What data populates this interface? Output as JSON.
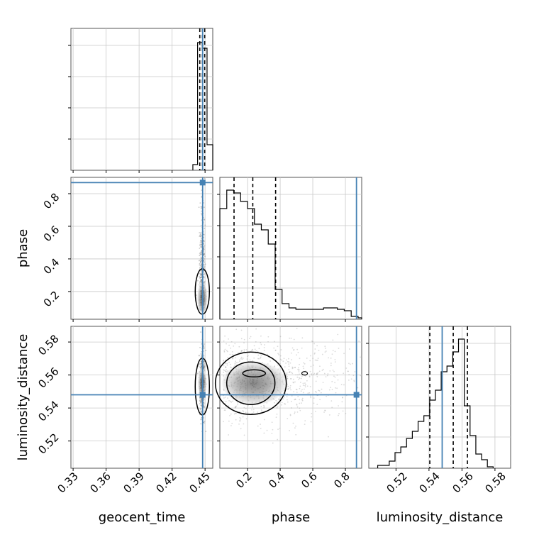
{
  "chart_data": {
    "type": "corner",
    "parameters": [
      "geocent_time",
      "phase",
      "luminosity_distance"
    ],
    "axis_labels": {
      "geocent_time": "geocent_time",
      "phase": "phase",
      "luminosity_distance": "luminosity_distance"
    },
    "axis_ranges": {
      "geocent_time": [
        0.328,
        0.457
      ],
      "phase": [
        0.03,
        0.9
      ],
      "luminosity_distance": [
        0.5035,
        0.5895
      ]
    },
    "ticks": {
      "geocent_time": [
        0.33,
        0.36,
        0.39,
        0.42,
        0.45
      ],
      "geocent_time_labels": [
        "0.33",
        "0.36",
        "0.39",
        "0.42",
        "0.45"
      ],
      "phase": [
        0.2,
        0.4,
        0.6,
        0.8
      ],
      "phase_labels": [
        "0.2",
        "0.4",
        "0.6",
        "0.8"
      ],
      "luminosity_distance": [
        0.52,
        0.54,
        0.56,
        0.58
      ],
      "luminosity_distance_labels": [
        "0.52",
        "0.54",
        "0.56",
        "0.58"
      ]
    },
    "truth": {
      "geocent_time": 0.4478,
      "phase": 0.868,
      "luminosity_distance": 0.548,
      "color": "#4682b4"
    },
    "quantiles": {
      "geocent_time": [
        0.4452,
        0.4476,
        0.4497
      ],
      "phase": [
        0.117,
        0.232,
        0.372
      ],
      "luminosity_distance": [
        0.5405,
        0.5547,
        0.5633
      ]
    },
    "marginals": {
      "geocent_time": {
        "edges": [
          0.4389,
          0.4432,
          0.4475,
          0.4518,
          0.457
        ],
        "heights": [
          0.04,
          0.9,
          0.86,
          0.18
        ]
      },
      "phase": {
        "edges": [
          0.03,
          0.0724,
          0.1148,
          0.1572,
          0.1996,
          0.242,
          0.2844,
          0.3268,
          0.3692,
          0.4116,
          0.454,
          0.4964,
          0.5388,
          0.5812,
          0.6236,
          0.666,
          0.7084,
          0.7508,
          0.7932,
          0.8356,
          0.878,
          0.9
        ],
        "heights": [
          0.78,
          0.91,
          0.89,
          0.83,
          0.78,
          0.67,
          0.63,
          0.53,
          0.21,
          0.11,
          0.08,
          0.07,
          0.07,
          0.07,
          0.07,
          0.08,
          0.08,
          0.07,
          0.06,
          0.02,
          0.01
        ]
      },
      "luminosity_distance": {
        "edges": [
          0.5089,
          0.5124,
          0.5159,
          0.5194,
          0.5229,
          0.5264,
          0.5299,
          0.5334,
          0.5369,
          0.5404,
          0.5439,
          0.5474,
          0.5509,
          0.5544,
          0.5579,
          0.5614,
          0.5649,
          0.5684,
          0.5719,
          0.5754,
          0.5789
        ],
        "heights": [
          0.02,
          0.02,
          0.05,
          0.11,
          0.15,
          0.21,
          0.26,
          0.33,
          0.37,
          0.48,
          0.55,
          0.68,
          0.72,
          0.82,
          0.91,
          0.44,
          0.23,
          0.1,
          0.06,
          0.01
        ]
      }
    },
    "grid": true,
    "legend": "none"
  }
}
